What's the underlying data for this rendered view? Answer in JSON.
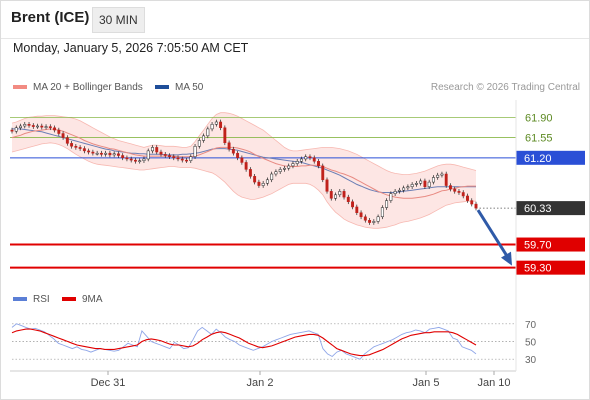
{
  "header": {
    "instrument": "Brent (ICE)",
    "timeframe": "30 MIN",
    "datetime": "Monday, January 5, 2026 7:05:50 AM CET"
  },
  "legend": {
    "bb_label": "MA 20 + Bollinger Bands",
    "ma50_label": "MA 50",
    "credit": "Research © 2026 Trading Central",
    "bb_color": "#f28b82",
    "ma50_color": "#1f4e99"
  },
  "rsi_legend": {
    "rsi_label": "RSI",
    "ma9_label": "9MA",
    "rsi_color": "#5b7fd6",
    "ma9_color": "#e00000"
  },
  "chart_data": {
    "type": "candlestick",
    "x_ticks": [
      "Dec 31",
      "Jan 2",
      "Jan 5",
      "Jan 10"
    ],
    "price_axis": {
      "ylim": [
        59.0,
        62.2
      ]
    },
    "levels": [
      {
        "value": 61.9,
        "label": "61.90",
        "kind": "resistance",
        "color": "#8ab84a"
      },
      {
        "value": 61.55,
        "label": "61.55",
        "kind": "resistance",
        "color": "#8ab84a"
      },
      {
        "value": 61.2,
        "label": "61.20",
        "kind": "pivot",
        "color": "#2a4fd6"
      },
      {
        "value": 60.33,
        "label": "60.33",
        "kind": "last",
        "color": "#333333"
      },
      {
        "value": 59.7,
        "label": "59.70",
        "kind": "support",
        "color": "#e00000"
      },
      {
        "value": 59.3,
        "label": "59.30",
        "kind": "support",
        "color": "#e00000"
      }
    ],
    "close": [
      61.66,
      61.72,
      61.75,
      61.78,
      61.76,
      61.74,
      61.75,
      61.73,
      61.74,
      61.72,
      61.68,
      61.62,
      61.55,
      61.45,
      61.4,
      61.38,
      61.36,
      61.32,
      61.3,
      61.28,
      61.28,
      61.26,
      61.28,
      61.25,
      61.27,
      61.24,
      61.2,
      61.18,
      61.16,
      61.14,
      61.15,
      61.18,
      61.32,
      61.38,
      61.3,
      61.26,
      61.24,
      61.22,
      61.2,
      61.18,
      61.16,
      61.15,
      61.22,
      61.4,
      61.5,
      61.58,
      61.7,
      61.78,
      61.82,
      61.72,
      61.46,
      61.35,
      61.28,
      61.2,
      61.12,
      61.0,
      60.88,
      60.78,
      60.72,
      60.76,
      60.82,
      60.92,
      60.96,
      61.0,
      61.02,
      61.06,
      61.1,
      61.14,
      61.18,
      61.22,
      61.2,
      61.14,
      61.06,
      60.82,
      60.62,
      60.5,
      60.56,
      60.62,
      60.52,
      60.44,
      60.35,
      60.25,
      60.18,
      60.12,
      60.08,
      60.1,
      60.18,
      60.34,
      60.46,
      60.58,
      60.62,
      60.64,
      60.68,
      60.7,
      60.74,
      60.76,
      60.8,
      60.7,
      60.78,
      60.86,
      60.9,
      60.92,
      60.72,
      60.66,
      60.62,
      60.6,
      60.54,
      60.46,
      60.4,
      60.33
    ],
    "ma20": [
      61.55,
      61.57,
      61.59,
      61.62,
      61.64,
      61.66,
      61.67,
      61.68,
      61.69,
      61.7,
      61.69,
      61.68,
      61.66,
      61.63,
      61.6,
      61.57,
      61.54,
      61.5,
      61.47,
      61.44,
      61.42,
      61.4,
      61.38,
      61.36,
      61.35,
      61.33,
      61.31,
      61.29,
      61.27,
      61.25,
      61.24,
      61.23,
      61.23,
      61.23,
      61.23,
      61.23,
      61.23,
      61.23,
      61.23,
      61.22,
      61.22,
      61.22,
      61.22,
      61.23,
      61.25,
      61.28,
      61.31,
      61.34,
      61.37,
      61.38,
      61.38,
      61.38,
      61.38,
      61.37,
      61.35,
      61.33,
      61.3,
      61.26,
      61.22,
      61.19,
      61.16,
      61.13,
      61.1,
      61.08,
      61.06,
      61.05,
      61.05,
      61.05,
      61.06,
      61.06,
      61.07,
      61.07,
      61.07,
      61.05,
      61.02,
      60.99,
      60.97,
      60.94,
      60.92,
      60.89,
      60.86,
      60.82,
      60.78,
      60.74,
      60.7,
      60.66,
      60.62,
      60.59,
      60.56,
      60.54,
      60.52,
      60.51,
      60.5,
      60.5,
      60.5,
      60.51,
      60.52,
      60.53,
      60.55,
      60.57,
      60.6,
      60.63,
      60.64,
      60.66,
      60.67,
      60.69,
      60.7,
      60.71,
      60.71,
      60.71
    ],
    "bb_upper": [
      61.8,
      61.82,
      61.85,
      61.88,
      61.9,
      61.91,
      61.92,
      61.92,
      61.93,
      61.93,
      61.93,
      61.92,
      61.91,
      61.9,
      61.89,
      61.87,
      61.84,
      61.8,
      61.76,
      61.72,
      61.68,
      61.64,
      61.6,
      61.56,
      61.53,
      61.5,
      61.48,
      61.46,
      61.44,
      61.42,
      61.4,
      61.38,
      61.4,
      61.42,
      61.42,
      61.41,
      61.4,
      61.4,
      61.4,
      61.39,
      61.38,
      61.38,
      61.4,
      61.48,
      61.58,
      61.68,
      61.78,
      61.88,
      61.95,
      61.98,
      61.98,
      61.97,
      61.95,
      61.92,
      61.88,
      61.84,
      61.8,
      61.76,
      61.72,
      61.68,
      61.62,
      61.56,
      61.5,
      61.44,
      61.38,
      61.34,
      61.32,
      61.32,
      61.33,
      61.34,
      61.35,
      61.36,
      61.37,
      61.38,
      61.38,
      61.38,
      61.37,
      61.36,
      61.34,
      61.32,
      61.29,
      61.26,
      61.22,
      61.18,
      61.14,
      61.1,
      61.06,
      61.02,
      60.98,
      60.95,
      60.93,
      60.92,
      60.91,
      60.91,
      60.92,
      60.93,
      60.95,
      60.97,
      61.0,
      61.03,
      61.06,
      61.08,
      61.09,
      61.09,
      61.08,
      61.06,
      61.04,
      61.02,
      61.0,
      60.98
    ],
    "bb_lower": [
      61.3,
      61.32,
      61.34,
      61.36,
      61.38,
      61.4,
      61.42,
      61.44,
      61.45,
      61.46,
      61.45,
      61.43,
      61.4,
      61.36,
      61.31,
      61.26,
      61.22,
      61.18,
      61.14,
      61.11,
      61.09,
      61.08,
      61.07,
      61.06,
      61.05,
      61.04,
      61.03,
      61.02,
      61.01,
      61.0,
      60.99,
      60.99,
      61.0,
      61.01,
      61.02,
      61.03,
      61.04,
      61.05,
      61.05,
      61.04,
      61.03,
      61.03,
      61.03,
      61.02,
      61.0,
      60.98,
      60.96,
      60.94,
      60.9,
      60.84,
      60.78,
      60.7,
      60.62,
      60.56,
      60.52,
      60.5,
      60.48,
      60.48,
      60.5,
      60.52,
      60.55,
      60.58,
      60.62,
      60.66,
      60.7,
      60.74,
      60.76,
      60.76,
      60.76,
      60.76,
      60.74,
      60.7,
      60.64,
      60.56,
      60.44,
      60.34,
      60.26,
      60.2,
      60.14,
      60.1,
      60.07,
      60.04,
      60.02,
      60.0,
      59.99,
      59.98,
      59.98,
      59.99,
      60.0,
      60.02,
      60.04,
      60.07,
      60.09,
      60.1,
      60.12,
      60.14,
      60.16,
      60.19,
      60.22,
      60.26,
      60.3,
      60.34,
      60.38,
      60.4,
      60.42,
      60.43,
      60.44,
      60.45,
      60.45,
      60.45
    ],
    "ma50": [
      61.7,
      61.7,
      61.7,
      61.69,
      61.68,
      61.67,
      61.66,
      61.65,
      61.63,
      61.61,
      61.59,
      61.57,
      61.55,
      61.53,
      61.51,
      61.49,
      61.47,
      61.45,
      61.43,
      61.41,
      61.39,
      61.37,
      61.35,
      61.34,
      61.32,
      61.31,
      61.3,
      61.29,
      61.28,
      61.28,
      61.27,
      61.27,
      61.26,
      61.26,
      61.26,
      61.26,
      61.25,
      61.25,
      61.25,
      61.25,
      61.26,
      61.26,
      61.27,
      61.28,
      61.29,
      61.31,
      61.33,
      61.35,
      61.36,
      61.36,
      61.36,
      61.35,
      61.34,
      61.33,
      61.31,
      61.29,
      61.27,
      61.25,
      61.23,
      61.21,
      61.2,
      61.19,
      61.18,
      61.17,
      61.16,
      61.15,
      61.14,
      61.13,
      61.12,
      61.1,
      61.08,
      61.06,
      61.04,
      61.02,
      60.99,
      60.96,
      60.93,
      60.9,
      60.86,
      60.82,
      60.78,
      60.74,
      60.71,
      60.68,
      60.65,
      60.63,
      60.61,
      60.6,
      60.6,
      60.6,
      60.6,
      60.61,
      60.62,
      60.63,
      60.64,
      60.65,
      60.66,
      60.67,
      60.68,
      60.69,
      60.7,
      60.7,
      60.7,
      60.7,
      60.7,
      60.7,
      60.7,
      60.7,
      60.7,
      60.7
    ],
    "rsi": {
      "yticks": [
        70,
        50,
        30
      ],
      "ylim": [
        20,
        80
      ],
      "rsi_values": [
        66,
        70,
        68,
        66,
        64,
        65,
        63,
        61,
        57,
        53,
        48,
        46,
        44,
        42,
        44,
        41,
        40,
        38,
        40,
        42,
        41,
        40,
        39,
        40,
        44,
        48,
        46,
        44,
        62,
        56,
        50,
        48,
        46,
        44,
        42,
        49,
        46,
        42,
        43,
        52,
        62,
        66,
        62,
        58,
        64,
        60,
        55,
        52,
        50,
        46,
        44,
        42,
        40,
        42,
        44,
        47,
        50,
        52,
        54,
        56,
        58,
        59,
        60,
        61,
        62,
        60,
        58,
        42,
        36,
        33,
        38,
        40,
        36,
        34,
        32,
        30,
        36,
        40,
        44,
        46,
        48,
        50,
        52,
        55,
        58,
        60,
        61,
        63,
        62,
        60,
        64,
        65,
        66,
        64,
        62,
        54,
        52,
        44,
        42,
        40,
        36
      ],
      "ma9_values": [
        60,
        62,
        63,
        64,
        64,
        63,
        62,
        60,
        58,
        56,
        54,
        52,
        50,
        48,
        46,
        45,
        44,
        43,
        42,
        42,
        41,
        41,
        41,
        42,
        43,
        44,
        45,
        46,
        50,
        52,
        53,
        52,
        51,
        49,
        47,
        46,
        46,
        45,
        44,
        45,
        48,
        52,
        55,
        58,
        60,
        61,
        60,
        58,
        56,
        54,
        51,
        48,
        46,
        44,
        43,
        44,
        45,
        47,
        49,
        51,
        53,
        55,
        56,
        57,
        58,
        58,
        57,
        54,
        50,
        46,
        42,
        40,
        38,
        36,
        35,
        34,
        34,
        35,
        37,
        39,
        41,
        44,
        47,
        50,
        53,
        55,
        57,
        58,
        59,
        60,
        60,
        61,
        61,
        61,
        61,
        60,
        58,
        55,
        52,
        49,
        46
      ]
    }
  }
}
